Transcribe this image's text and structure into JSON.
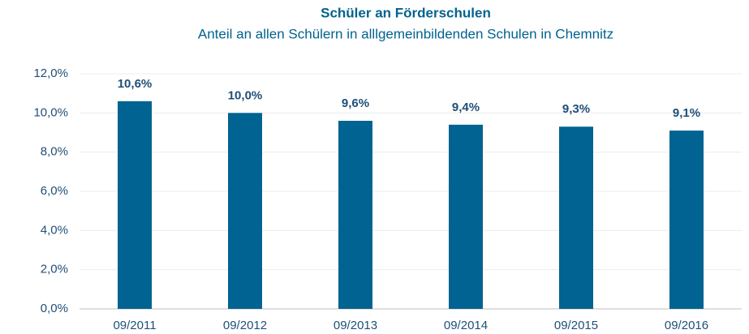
{
  "chart_data": {
    "type": "bar",
    "title": "Schüler an Förderschulen",
    "subtitle": "Anteil an allen Schülern in alllgemeinbildenden Schulen in Chemnitz",
    "categories": [
      "09/2011",
      "09/2012",
      "09/2013",
      "09/2014",
      "09/2015",
      "09/2016"
    ],
    "values": [
      10.6,
      10.0,
      9.6,
      9.4,
      9.3,
      9.1
    ],
    "value_labels": [
      "10,6%",
      "10,0%",
      "9,6%",
      "9,4%",
      "9,3%",
      "9,1%"
    ],
    "color": "#006391",
    "ylim": [
      0,
      12
    ],
    "yticks": [
      {
        "value": 0,
        "label": "0,0%"
      },
      {
        "value": 2,
        "label": "2,0%"
      },
      {
        "value": 4,
        "label": "4,0%"
      },
      {
        "value": 6,
        "label": "6,0%"
      },
      {
        "value": 8,
        "label": "8,0%"
      },
      {
        "value": 10,
        "label": "10,0%"
      },
      {
        "value": 12,
        "label": "12,0%"
      }
    ],
    "grid": true
  }
}
